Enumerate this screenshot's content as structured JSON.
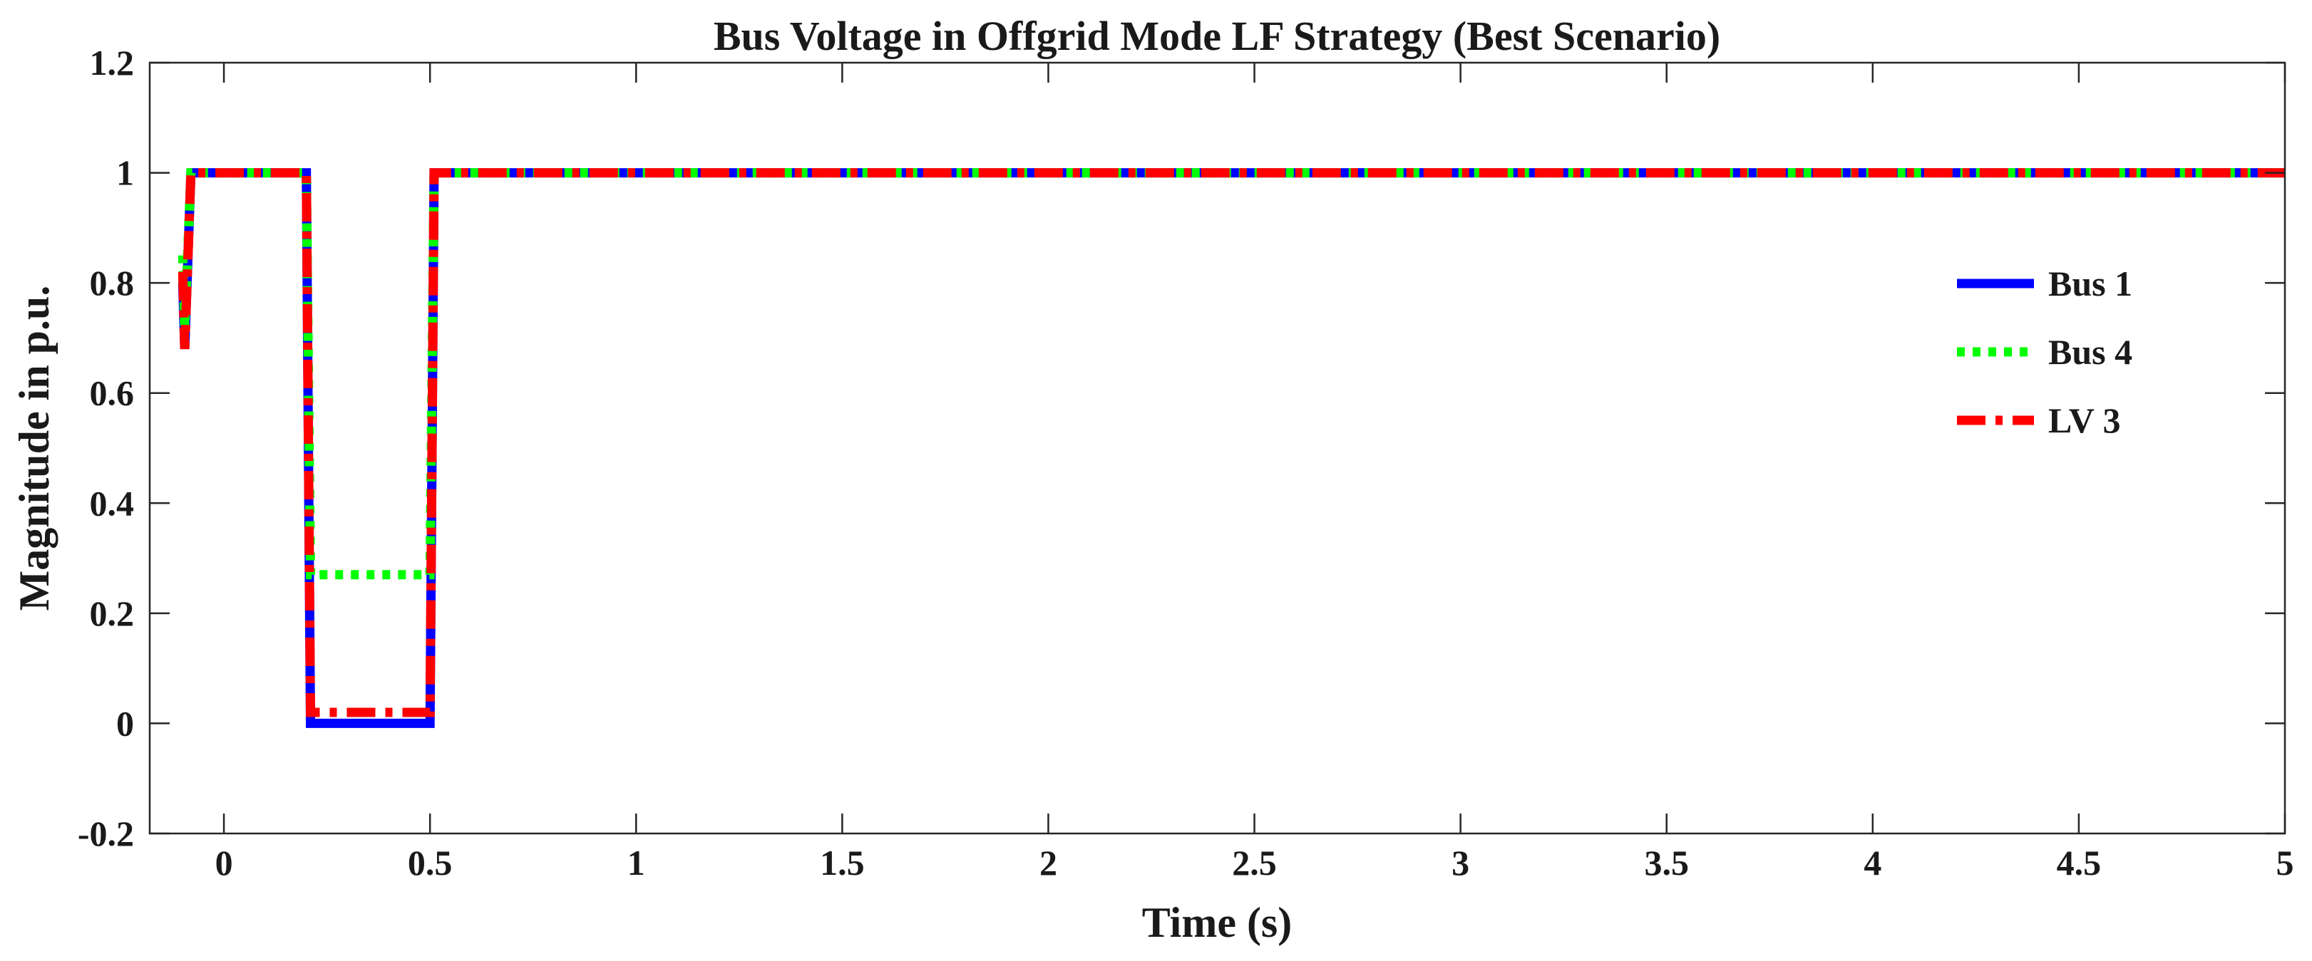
{
  "chart_data": {
    "type": "line",
    "title": "Bus Voltage in Offgrid Mode LF Strategy (Best Scenario)",
    "xlabel": "Time (s)",
    "ylabel": "Magnitude in p.u.",
    "xlim": [
      -0.18,
      5
    ],
    "ylim": [
      -0.2,
      1.2
    ],
    "xticks": [
      "0",
      "0.5",
      "1",
      "1.5",
      "2",
      "2.5",
      "3",
      "3.5",
      "4",
      "4.5",
      "5"
    ],
    "yticks": [
      "-0.2",
      "0",
      "0.2",
      "0.4",
      "0.6",
      "0.8",
      "1",
      "1.2"
    ],
    "grid": false,
    "legend_position": "right",
    "series": [
      {
        "name": "Bus 1",
        "color": "#0000ff",
        "style": "solid",
        "x": [
          -0.1,
          -0.095,
          -0.08,
          0.2,
          0.21,
          0.5,
          0.51,
          5
        ],
        "y": [
          0.8,
          0.68,
          1.0,
          1.0,
          0.0,
          0.0,
          1.0,
          1.0
        ]
      },
      {
        "name": "Bus 4",
        "color": "#00ff00",
        "style": "dotted",
        "x": [
          -0.1,
          -0.095,
          -0.08,
          0.2,
          0.21,
          0.5,
          0.51,
          5
        ],
        "y": [
          0.85,
          0.72,
          1.0,
          1.0,
          0.27,
          0.27,
          1.0,
          1.0
        ]
      },
      {
        "name": "LV 3",
        "color": "#ff0000",
        "style": "dashdot",
        "x": [
          -0.1,
          -0.095,
          -0.08,
          0.2,
          0.21,
          0.5,
          0.51,
          5
        ],
        "y": [
          0.82,
          0.68,
          1.0,
          1.0,
          0.02,
          0.02,
          1.0,
          1.0
        ]
      }
    ]
  }
}
